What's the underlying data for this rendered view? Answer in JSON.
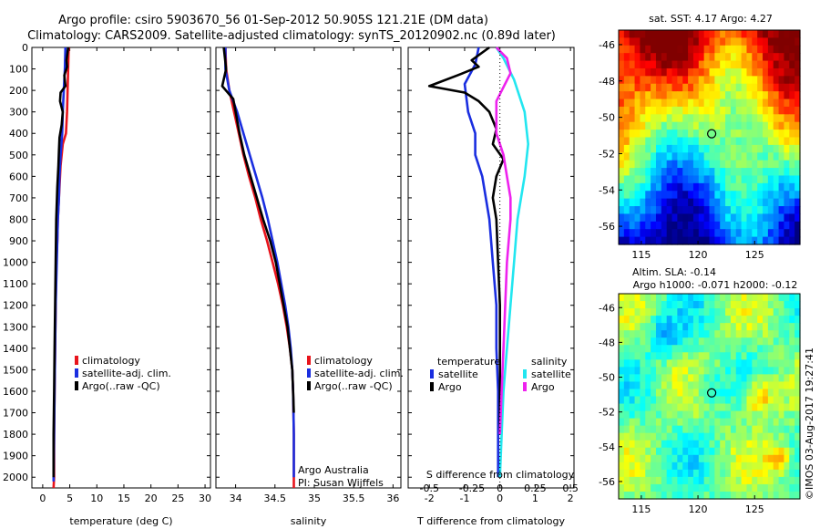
{
  "title": {
    "line1": "Argo profile: csiro 5903670_56 01-Sep-2012 50.905S 121.21E (DM data)",
    "line2": "Climatology: CARS2009. Satellite-adjusted climatology: synTS_20120902.nc (0.89d later)"
  },
  "colors": {
    "climatology": "#e8141c",
    "satellite": "#1a2ee0",
    "argo": "#000000",
    "sal_satellite": "#22e6f0",
    "sal_argo": "#ee22ee"
  },
  "credit": {
    "line1": "Argo Australia",
    "line2": "PI: Susan Wijffels"
  },
  "watermark": "©IMOS 03-Aug-2017 19:27:41",
  "map_sst": {
    "title": "sat. SST: 4.17 Argo: 4.27"
  },
  "map_sla": {
    "title_line1": "Altim. SLA: -0.14",
    "title_line2": "Argo h1000: -0.071 h2000: -0.12"
  },
  "chart_data": [
    {
      "type": "line",
      "xlabel": "temperature (deg C)",
      "ylabel": "",
      "xlim": [
        -2,
        31
      ],
      "ylim": [
        2050,
        0
      ],
      "xticks": [
        "0",
        "5",
        "10",
        "15",
        "20",
        "25",
        "30"
      ],
      "yticks": [
        "0",
        "100",
        "200",
        "300",
        "400",
        "500",
        "600",
        "700",
        "800",
        "900",
        "1000",
        "1100",
        "1200",
        "1300",
        "1400",
        "1500",
        "1600",
        "1700",
        "1800",
        "1900",
        "2000"
      ],
      "legend": [
        "climatology",
        "satellite-adj. clim.",
        "Argo(..raw -QC)"
      ],
      "series": [
        {
          "name": "climatology",
          "x": [
            4.8,
            4.7,
            4.6,
            4.5,
            4.3,
            3.7,
            3.3,
            3.1,
            2.8,
            2.7,
            2.5,
            2.4,
            2.3,
            2.2,
            2.1,
            2.1,
            2.0
          ],
          "y": [
            0,
            100,
            200,
            300,
            400,
            450,
            550,
            650,
            800,
            900,
            1000,
            1200,
            1400,
            1600,
            1800,
            2000,
            2050
          ]
        },
        {
          "name": "satellite-adj. clim.",
          "x": [
            4.2,
            4.1,
            3.9,
            3.7,
            3.6,
            3.3,
            3.1,
            3.0,
            2.8,
            2.6,
            2.4,
            2.3,
            2.2,
            2.1,
            2.0,
            2.0
          ],
          "y": [
            0,
            100,
            200,
            300,
            400,
            500,
            600,
            700,
            800,
            1000,
            1200,
            1400,
            1600,
            1800,
            2000,
            2020
          ]
        },
        {
          "name": "Argo(..raw -QC)",
          "x": [
            4.7,
            4.4,
            4.5,
            4.0,
            4.2,
            3.3,
            3.2,
            3.7,
            3.5,
            3.1,
            3.0,
            2.9,
            2.7,
            2.5,
            2.4,
            2.3,
            2.2,
            2.1,
            2.0,
            2.0
          ],
          "y": [
            0,
            60,
            90,
            130,
            180,
            210,
            250,
            300,
            360,
            420,
            480,
            550,
            650,
            800,
            1000,
            1200,
            1400,
            1600,
            1800,
            2000
          ]
        }
      ]
    },
    {
      "type": "line",
      "xlabel": "salinity",
      "xlim": [
        33.75,
        36.1
      ],
      "ylim": [
        2050,
        0
      ],
      "xticks": [
        "34",
        "34.5",
        "35",
        "35.5",
        "36"
      ],
      "legend": [
        "climatology",
        "satellite-adj. clim.",
        "Argo(..raw -QC)"
      ],
      "series": [
        {
          "name": "climatology",
          "x": [
            33.87,
            33.88,
            33.92,
            33.98,
            34.04,
            34.1,
            34.17,
            34.25,
            34.32,
            34.4,
            34.47,
            34.54,
            34.6,
            34.65,
            34.69,
            34.72,
            34.73,
            34.74,
            34.74
          ],
          "y": [
            0,
            100,
            200,
            300,
            400,
            500,
            600,
            700,
            800,
            900,
            1000,
            1100,
            1200,
            1300,
            1400,
            1500,
            1600,
            1800,
            2050
          ]
        },
        {
          "name": "satellite-adj. clim.",
          "x": [
            33.87,
            33.87,
            33.92,
            34.02,
            34.1,
            34.18,
            34.26,
            34.34,
            34.41,
            34.47,
            34.53,
            34.58,
            34.63,
            34.67,
            34.7,
            34.72,
            34.73,
            34.74,
            34.74
          ],
          "y": [
            0,
            100,
            200,
            300,
            400,
            500,
            600,
            700,
            800,
            900,
            1000,
            1100,
            1200,
            1300,
            1400,
            1500,
            1600,
            1800,
            2000
          ]
        },
        {
          "name": "Argo(..raw -QC)",
          "x": [
            33.85,
            33.88,
            33.83,
            33.97,
            34.0,
            34.05,
            34.11,
            34.19,
            34.27,
            34.35,
            34.44,
            34.51,
            34.56,
            34.61,
            34.66,
            34.69,
            34.72,
            34.73,
            34.74
          ],
          "y": [
            0,
            100,
            180,
            240,
            300,
            400,
            500,
            600,
            700,
            800,
            900,
            1000,
            1100,
            1200,
            1300,
            1400,
            1500,
            1600,
            1700
          ]
        }
      ]
    },
    {
      "type": "line",
      "xlabel": "T difference from climatology",
      "xlabel_top": "S difference from climatology",
      "xlim": [
        -2.6,
        2.1
      ],
      "ylim": [
        2050,
        0
      ],
      "xticks": [
        "-2",
        "-1",
        "0",
        "1",
        "2"
      ],
      "xticks_top": [
        "-0.5",
        "-0.25",
        "0",
        "0.25",
        "0.5"
      ],
      "legend_headers": [
        "temperature",
        "salinity"
      ],
      "legend": [
        "satellite",
        "Argo",
        "satellite",
        "Argo"
      ],
      "series": [
        {
          "name": "satellite",
          "x": [
            -0.6,
            -0.7,
            -1.0,
            -0.9,
            -0.7,
            -0.7,
            -0.5,
            -0.4,
            -0.3,
            -0.2,
            -0.1,
            -0.1,
            -0.05,
            -0.05,
            -0.05
          ],
          "y": [
            0,
            80,
            170,
            300,
            400,
            500,
            600,
            700,
            800,
            1000,
            1200,
            1400,
            1600,
            1800,
            2000
          ]
        },
        {
          "name": "Argo",
          "x": [
            -0.3,
            -0.8,
            -0.6,
            -1.2,
            -2.0,
            -1.0,
            -0.6,
            -0.3,
            -0.1,
            -0.2,
            0.1,
            -0.1,
            -0.2,
            -0.1,
            -0.05,
            0.0,
            0.0,
            0.0,
            0.0
          ],
          "y": [
            0,
            60,
            90,
            130,
            180,
            210,
            250,
            300,
            380,
            450,
            520,
            600,
            700,
            800,
            1000,
            1200,
            1400,
            1600,
            1800
          ]
        },
        {
          "name": "satellite",
          "x": [
            -0.1,
            0.1,
            0.4,
            0.7,
            0.8,
            0.7,
            0.6,
            0.5,
            0.4,
            0.3,
            0.2,
            0.1,
            0.05,
            0.0
          ],
          "y": [
            0,
            50,
            150,
            300,
            450,
            600,
            700,
            800,
            1000,
            1200,
            1400,
            1600,
            1800,
            2000
          ]
        },
        {
          "name": "Argo",
          "x": [
            -0.1,
            0.2,
            0.3,
            -0.1,
            -0.1,
            0.1,
            0.2,
            0.3,
            0.3,
            0.2,
            0.15,
            0.1,
            0.05,
            0.0
          ],
          "y": [
            0,
            50,
            120,
            250,
            400,
            500,
            600,
            700,
            800,
            1000,
            1200,
            1400,
            1600,
            1800
          ]
        }
      ]
    },
    {
      "type": "heatmap",
      "xlim": [
        113,
        129
      ],
      "ylim": [
        -57,
        -45.2
      ],
      "xticks": [
        "115",
        "120",
        "125"
      ],
      "yticks": [
        "-46",
        "-48",
        "-50",
        "-52",
        "-54",
        "-56"
      ],
      "marker": {
        "lon": 121.21,
        "lat": -50.905
      }
    },
    {
      "type": "heatmap",
      "xlim": [
        113,
        129
      ],
      "ylim": [
        -57,
        -45.2
      ],
      "xticks": [
        "115",
        "120",
        "125"
      ],
      "yticks": [
        "-46",
        "-48",
        "-50",
        "-52",
        "-54",
        "-56"
      ],
      "marker": {
        "lon": 121.21,
        "lat": -50.905
      }
    }
  ]
}
